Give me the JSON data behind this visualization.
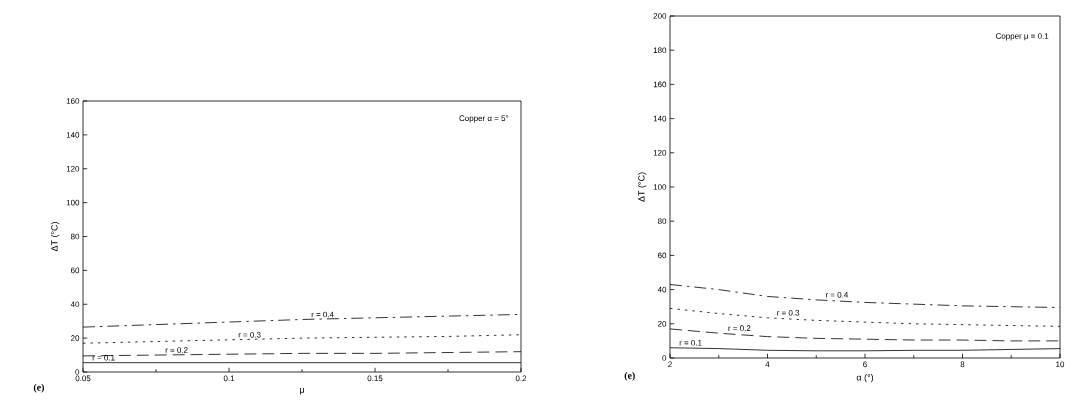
{
  "chart_data": [
    {
      "type": "line",
      "xlabel": "μ",
      "ylabel": "ΔT (°C)",
      "xlim": [
        0.05,
        0.2
      ],
      "ylim": [
        0,
        160
      ],
      "xticks": [
        0.05,
        0.1,
        0.15,
        0.2
      ],
      "yticks": [
        0,
        20,
        40,
        60,
        80,
        100,
        120,
        140,
        160
      ],
      "grid": false,
      "legend": false,
      "annotations": [
        "Copper  α = 5°",
        "(e)"
      ],
      "x": [
        0.05,
        0.075,
        0.1,
        0.125,
        0.15,
        0.175,
        0.2
      ],
      "series": [
        {
          "name": "r = 0.1",
          "color": "#000000",
          "line_style": "solid",
          "values": [
            5.5,
            5.5,
            5.5,
            5.5,
            5.5,
            5.5,
            5.5
          ]
        },
        {
          "name": "r = 0.2",
          "color": "#000000",
          "line_style": "dashed",
          "values": [
            9.5,
            10,
            10.5,
            11,
            11,
            11.5,
            12
          ]
        },
        {
          "name": "r = 0.3",
          "color": "#000000",
          "line_style": "dotted",
          "values": [
            17,
            18,
            19,
            20,
            20.5,
            21,
            22
          ]
        },
        {
          "name": "r = 0.4",
          "color": "#000000",
          "line_style": "dashdot",
          "values": [
            26.5,
            28,
            29.5,
            31,
            32,
            33,
            34
          ]
        }
      ]
    },
    {
      "type": "line",
      "xlabel": "α (°)",
      "ylabel": "ΔT (°C)",
      "xlim": [
        2,
        10
      ],
      "ylim": [
        0,
        200
      ],
      "xticks": [
        2,
        4,
        6,
        8,
        10
      ],
      "yticks": [
        0,
        20,
        40,
        60,
        80,
        100,
        120,
        140,
        160,
        180,
        200
      ],
      "grid": false,
      "legend": false,
      "annotations": [
        "Copper  μ = 0.1",
        "(e)"
      ],
      "x": [
        2,
        3,
        4,
        5,
        6,
        7,
        8,
        9,
        10
      ],
      "series": [
        {
          "name": "r = 0.1",
          "color": "#000000",
          "line_style": "solid",
          "values": [
            6,
            5.5,
            4.5,
            4.2,
            4.2,
            4.5,
            4.5,
            5,
            5.5
          ]
        },
        {
          "name": "r = 0.2",
          "color": "#000000",
          "line_style": "dashed",
          "values": [
            17,
            14.5,
            12.5,
            11.5,
            11,
            10.5,
            10.5,
            10,
            10
          ]
        },
        {
          "name": "r = 0.3",
          "color": "#000000",
          "line_style": "dotted",
          "values": [
            29,
            26,
            23.5,
            22,
            21,
            20,
            19.5,
            19,
            18.5
          ]
        },
        {
          "name": "r = 0.4",
          "color": "#000000",
          "line_style": "dashdot",
          "values": [
            43,
            40,
            36,
            34,
            32.5,
            31.5,
            30.5,
            30,
            29.5
          ]
        }
      ]
    }
  ]
}
